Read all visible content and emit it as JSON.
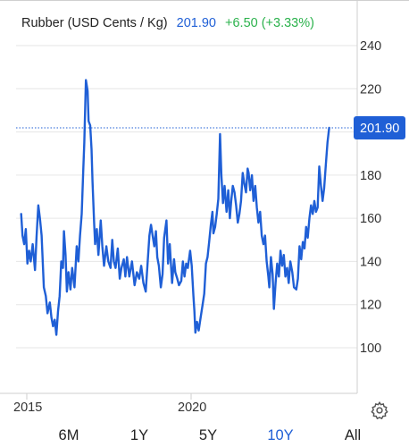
{
  "header": {
    "name": "Rubber (USD Cents / Kg)",
    "price": "201.90",
    "change": "+6.50 (+3.33%)"
  },
  "price_tag": "201.90",
  "ranges": [
    "6M",
    "1Y",
    "5Y",
    "10Y",
    "All"
  ],
  "active_range": "10Y",
  "colors": {
    "line": "#1f5fd6",
    "up": "#2bb24c",
    "tag_bg": "#1f5fd6"
  },
  "chart_data": {
    "type": "line",
    "title": "Rubber (USD Cents / Kg)",
    "xlabel": "",
    "ylabel": "",
    "y_ticks": [
      100,
      120,
      140,
      160,
      180,
      200,
      220,
      240
    ],
    "y_tick_labels": [
      "100",
      "120",
      "140",
      "160",
      "180",
      "",
      "220",
      "240"
    ],
    "x_ticks": [
      {
        "label": "2015",
        "x": 2015.0
      },
      {
        "label": "2020",
        "x": 2020.0
      }
    ],
    "ylim": [
      80,
      250
    ],
    "xlim": [
      2014.8,
      2024.95
    ],
    "grid": "horizontal",
    "last_value": 201.9,
    "series": [
      {
        "values": [
          [
            2014.83,
            162
          ],
          [
            2014.87,
            152
          ],
          [
            2014.92,
            148
          ],
          [
            2014.97,
            155
          ],
          [
            2015.02,
            139
          ],
          [
            2015.07,
            145
          ],
          [
            2015.12,
            140
          ],
          [
            2015.18,
            148
          ],
          [
            2015.25,
            136
          ],
          [
            2015.3,
            152
          ],
          [
            2015.35,
            166
          ],
          [
            2015.4,
            160
          ],
          [
            2015.45,
            152
          ],
          [
            2015.52,
            128
          ],
          [
            2015.58,
            124
          ],
          [
            2015.63,
            116
          ],
          [
            2015.7,
            121
          ],
          [
            2015.75,
            114
          ],
          [
            2015.8,
            110
          ],
          [
            2015.85,
            113
          ],
          [
            2015.9,
            106
          ],
          [
            2015.95,
            117
          ],
          [
            2016.0,
            124
          ],
          [
            2016.05,
            140
          ],
          [
            2016.1,
            137
          ],
          [
            2016.13,
            154
          ],
          [
            2016.18,
            143
          ],
          [
            2016.22,
            126
          ],
          [
            2016.27,
            135
          ],
          [
            2016.33,
            127
          ],
          [
            2016.38,
            137
          ],
          [
            2016.45,
            128
          ],
          [
            2016.52,
            147
          ],
          [
            2016.57,
            140
          ],
          [
            2016.62,
            152
          ],
          [
            2016.67,
            162
          ],
          [
            2016.72,
            183
          ],
          [
            2016.75,
            195
          ],
          [
            2016.8,
            224
          ],
          [
            2016.85,
            219
          ],
          [
            2016.88,
            205
          ],
          [
            2016.93,
            203
          ],
          [
            2016.97,
            192
          ],
          [
            2017.0,
            177
          ],
          [
            2017.05,
            158
          ],
          [
            2017.08,
            148
          ],
          [
            2017.13,
            155
          ],
          [
            2017.18,
            143
          ],
          [
            2017.25,
            159
          ],
          [
            2017.3,
            147
          ],
          [
            2017.35,
            138
          ],
          [
            2017.42,
            147
          ],
          [
            2017.48,
            140
          ],
          [
            2017.55,
            137
          ],
          [
            2017.6,
            150
          ],
          [
            2017.65,
            140
          ],
          [
            2017.7,
            137
          ],
          [
            2017.77,
            146
          ],
          [
            2017.83,
            132
          ],
          [
            2017.88,
            137
          ],
          [
            2017.95,
            141
          ],
          [
            2018.0,
            133
          ],
          [
            2018.05,
            142
          ],
          [
            2018.12,
            133
          ],
          [
            2018.2,
            140
          ],
          [
            2018.28,
            129
          ],
          [
            2018.35,
            135
          ],
          [
            2018.42,
            132
          ],
          [
            2018.48,
            138
          ],
          [
            2018.55,
            130
          ],
          [
            2018.62,
            126
          ],
          [
            2018.68,
            140
          ],
          [
            2018.73,
            152
          ],
          [
            2018.78,
            157
          ],
          [
            2018.83,
            152
          ],
          [
            2018.88,
            147
          ],
          [
            2018.93,
            154
          ],
          [
            2018.97,
            142
          ],
          [
            2019.02,
            138
          ],
          [
            2019.08,
            128
          ],
          [
            2019.13,
            134
          ],
          [
            2019.18,
            151
          ],
          [
            2019.25,
            159
          ],
          [
            2019.3,
            139
          ],
          [
            2019.35,
            148
          ],
          [
            2019.42,
            130
          ],
          [
            2019.48,
            141
          ],
          [
            2019.52,
            135
          ],
          [
            2019.58,
            132
          ],
          [
            2019.63,
            129
          ],
          [
            2019.7,
            131
          ],
          [
            2019.75,
            140
          ],
          [
            2019.8,
            133
          ],
          [
            2019.85,
            139
          ],
          [
            2019.9,
            137
          ],
          [
            2019.97,
            145
          ],
          [
            2020.02,
            138
          ],
          [
            2020.07,
            124
          ],
          [
            2020.1,
            117
          ],
          [
            2020.13,
            107
          ],
          [
            2020.18,
            112
          ],
          [
            2020.23,
            108
          ],
          [
            2020.28,
            113
          ],
          [
            2020.35,
            120
          ],
          [
            2020.4,
            125
          ],
          [
            2020.45,
            139
          ],
          [
            2020.5,
            142
          ],
          [
            2020.55,
            149
          ],
          [
            2020.6,
            157
          ],
          [
            2020.65,
            163
          ],
          [
            2020.68,
            153
          ],
          [
            2020.73,
            156
          ],
          [
            2020.78,
            162
          ],
          [
            2020.83,
            169
          ],
          [
            2020.88,
            199
          ],
          [
            2020.92,
            180
          ],
          [
            2020.97,
            167
          ],
          [
            2021.02,
            175
          ],
          [
            2021.08,
            163
          ],
          [
            2021.13,
            173
          ],
          [
            2021.18,
            160
          ],
          [
            2021.22,
            168
          ],
          [
            2021.27,
            175
          ],
          [
            2021.32,
            172
          ],
          [
            2021.37,
            166
          ],
          [
            2021.42,
            158
          ],
          [
            2021.47,
            162
          ],
          [
            2021.52,
            168
          ],
          [
            2021.57,
            181
          ],
          [
            2021.62,
            176
          ],
          [
            2021.67,
            172
          ],
          [
            2021.72,
            183
          ],
          [
            2021.75,
            181
          ],
          [
            2021.8,
            173
          ],
          [
            2021.85,
            180
          ],
          [
            2021.9,
            168
          ],
          [
            2021.95,
            175
          ],
          [
            2022.0,
            165
          ],
          [
            2022.05,
            158
          ],
          [
            2022.1,
            163
          ],
          [
            2022.15,
            152
          ],
          [
            2022.2,
            148
          ],
          [
            2022.25,
            152
          ],
          [
            2022.3,
            140
          ],
          [
            2022.35,
            133
          ],
          [
            2022.38,
            128
          ],
          [
            2022.43,
            142
          ],
          [
            2022.48,
            134
          ],
          [
            2022.52,
            118
          ],
          [
            2022.57,
            130
          ],
          [
            2022.62,
            139
          ],
          [
            2022.67,
            133
          ],
          [
            2022.72,
            145
          ],
          [
            2022.77,
            138
          ],
          [
            2022.82,
            143
          ],
          [
            2022.87,
            133
          ],
          [
            2022.92,
            137
          ],
          [
            2022.97,
            130
          ],
          [
            2023.02,
            140
          ],
          [
            2023.08,
            135
          ],
          [
            2023.13,
            128
          ],
          [
            2023.2,
            127
          ],
          [
            2023.25,
            132
          ],
          [
            2023.3,
            147
          ],
          [
            2023.35,
            141
          ],
          [
            2023.4,
            149
          ],
          [
            2023.45,
            146
          ],
          [
            2023.5,
            156
          ],
          [
            2023.55,
            151
          ],
          [
            2023.6,
            160
          ],
          [
            2023.65,
            166
          ],
          [
            2023.7,
            162
          ],
          [
            2023.75,
            168
          ],
          [
            2023.8,
            163
          ],
          [
            2023.85,
            165
          ],
          [
            2023.9,
            184
          ],
          [
            2023.95,
            175
          ],
          [
            2024.0,
            168
          ],
          [
            2024.05,
            174
          ],
          [
            2024.1,
            185
          ],
          [
            2024.15,
            195
          ],
          [
            2024.2,
            201.9
          ]
        ]
      }
    ]
  }
}
